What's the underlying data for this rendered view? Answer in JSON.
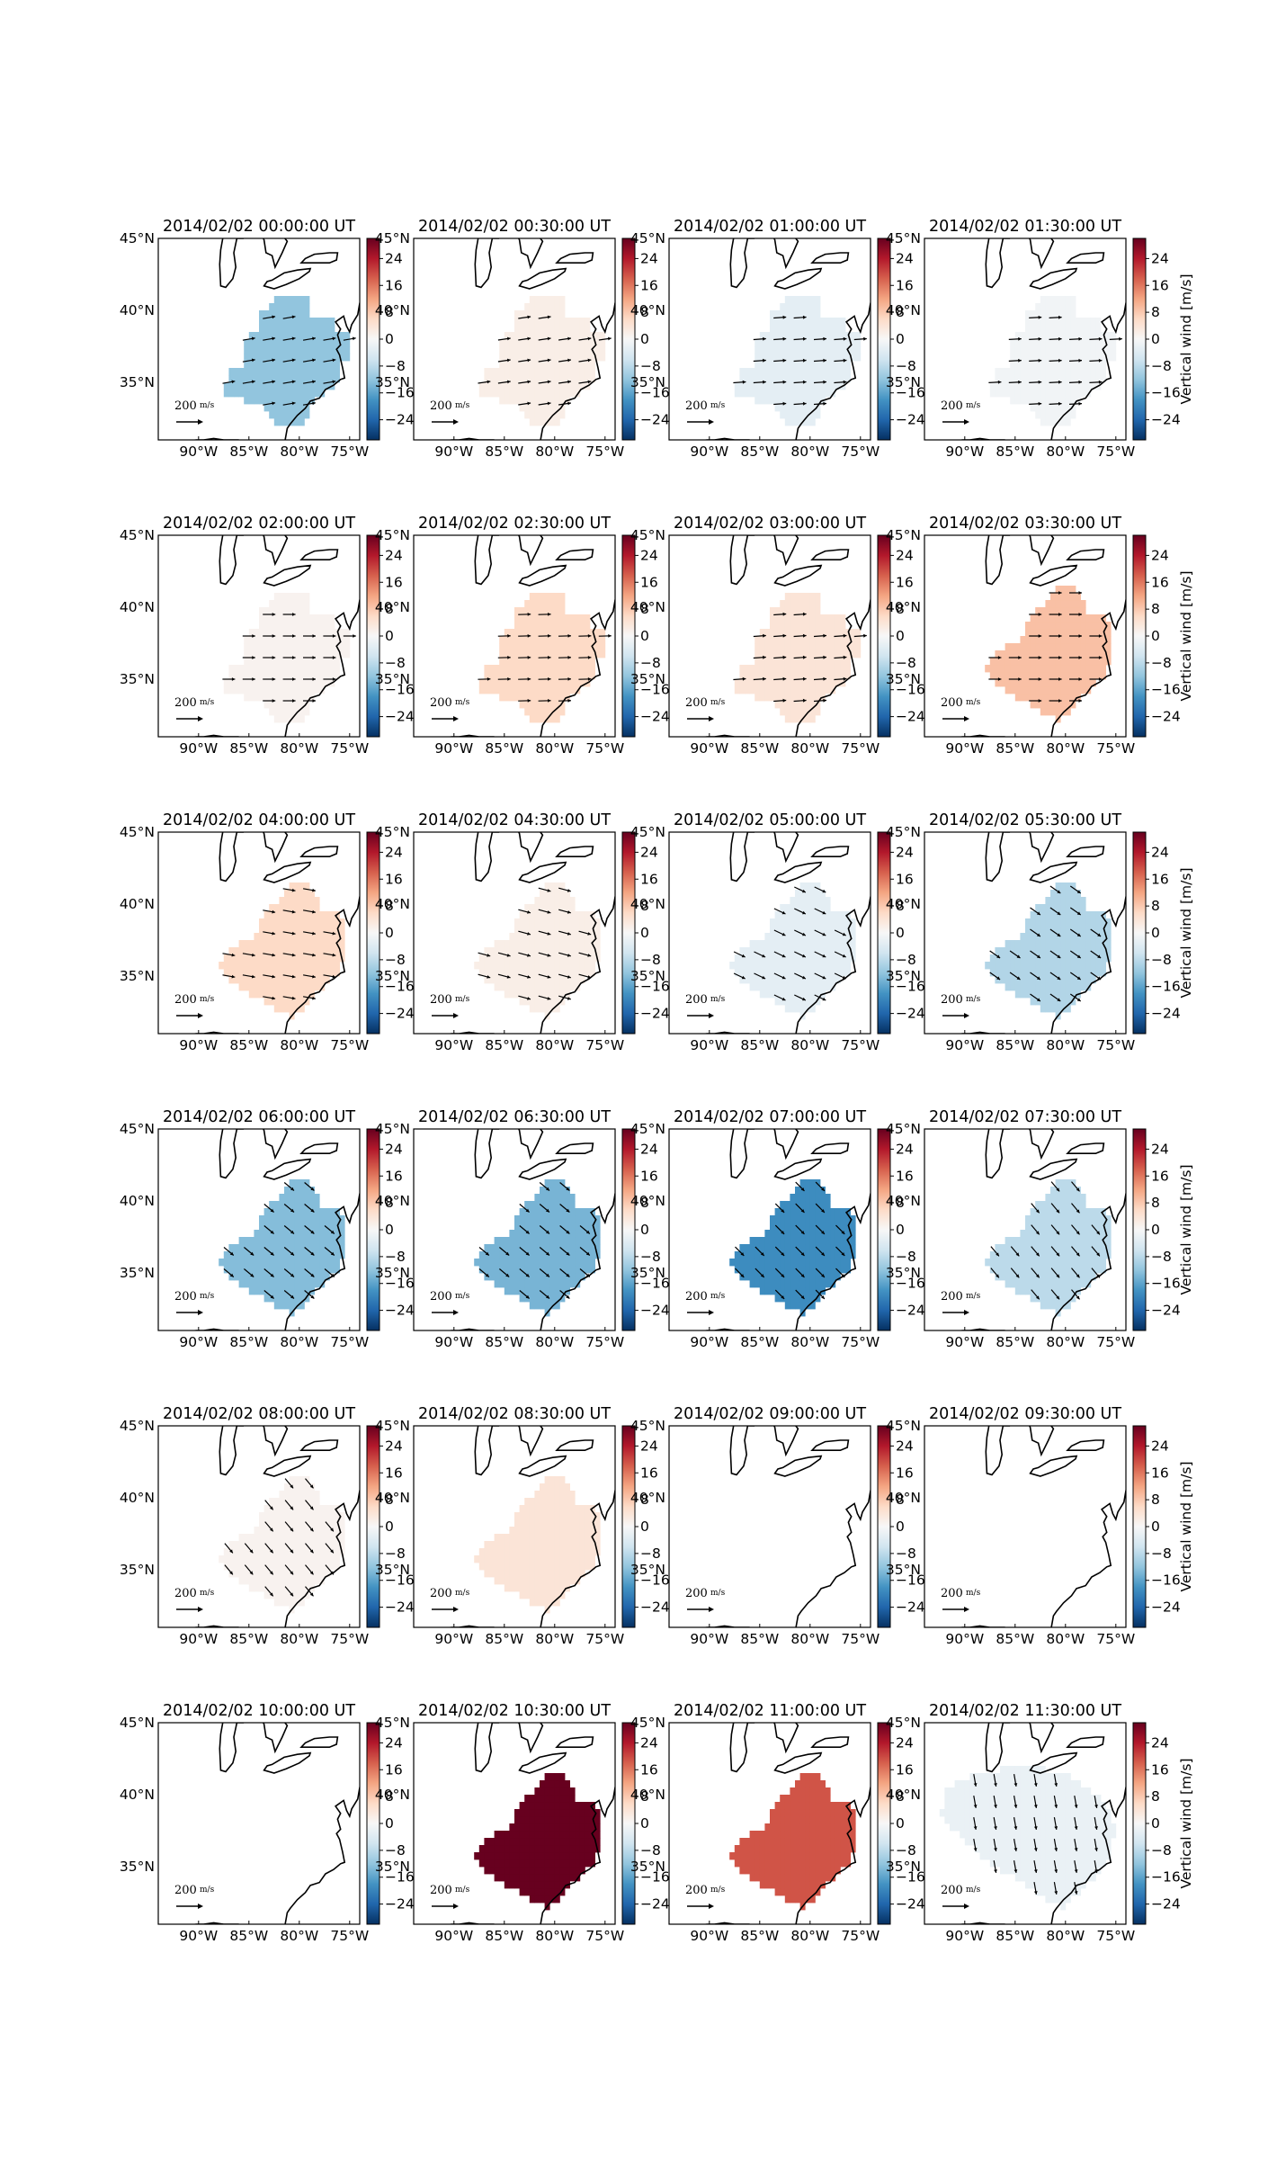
{
  "figure": {
    "colorbar_label": "Vertical wind [m/s]",
    "colorbar_ticks": [
      "24",
      "16",
      "8",
      "0",
      "−8",
      "−16",
      "−24"
    ],
    "lon_ticks": [
      "90°W",
      "85°W",
      "80°W",
      "75°W"
    ],
    "lat_ticks": [
      "45°N",
      "40°N",
      "35°N"
    ],
    "scale_arrow_label": "200",
    "scale_arrow_unit": "m/s"
  },
  "chart_data": {
    "type": "heatmap",
    "colormap": "RdBu_r",
    "vmin": -30,
    "vmax": 30,
    "lon_range": [
      -94,
      -74
    ],
    "lat_range": [
      31,
      45
    ],
    "panels": [
      {
        "title": "2014/02/02 00:00:00 UT",
        "value": -12,
        "wind_dir": 10,
        "shape": "a"
      },
      {
        "title": "2014/02/02 00:30:00 UT",
        "value": 2,
        "wind_dir": 8,
        "shape": "a"
      },
      {
        "title": "2014/02/02 01:00:00 UT",
        "value": -3,
        "wind_dir": 4,
        "shape": "a"
      },
      {
        "title": "2014/02/02 01:30:00 UT",
        "value": -1,
        "wind_dir": 3,
        "shape": "a"
      },
      {
        "title": "2014/02/02 02:00:00 UT",
        "value": 1,
        "wind_dir": 0,
        "shape": "a"
      },
      {
        "title": "2014/02/02 02:30:00 UT",
        "value": 6,
        "wind_dir": 2,
        "shape": "a"
      },
      {
        "title": "2014/02/02 03:00:00 UT",
        "value": 4,
        "wind_dir": 4,
        "shape": "a"
      },
      {
        "title": "2014/02/02 03:30:00 UT",
        "value": 9,
        "wind_dir": 0,
        "shape": "b"
      },
      {
        "title": "2014/02/02 04:00:00 UT",
        "value": 6,
        "wind_dir": -10,
        "shape": "b"
      },
      {
        "title": "2014/02/02 04:30:00 UT",
        "value": 2,
        "wind_dir": -15,
        "shape": "b"
      },
      {
        "title": "2014/02/02 05:00:00 UT",
        "value": -3,
        "wind_dir": -25,
        "shape": "b"
      },
      {
        "title": "2014/02/02 05:30:00 UT",
        "value": -9,
        "wind_dir": -35,
        "shape": "b"
      },
      {
        "title": "2014/02/02 06:00:00 UT",
        "value": -13,
        "wind_dir": -40,
        "shape": "b"
      },
      {
        "title": "2014/02/02 06:30:00 UT",
        "value": -14,
        "wind_dir": -40,
        "shape": "b"
      },
      {
        "title": "2014/02/02 07:00:00 UT",
        "value": -19,
        "wind_dir": -45,
        "shape": "b"
      },
      {
        "title": "2014/02/02 07:30:00 UT",
        "value": -8,
        "wind_dir": -50,
        "shape": "b"
      },
      {
        "title": "2014/02/02 08:00:00 UT",
        "value": 1,
        "wind_dir": -50,
        "shape": "b"
      },
      {
        "title": "2014/02/02 08:30:00 UT",
        "value": 4,
        "wind_dir": null,
        "shape": "b"
      },
      {
        "title": "2014/02/02 09:00:00 UT",
        "value": null,
        "wind_dir": null,
        "shape": "none"
      },
      {
        "title": "2014/02/02 09:30:00 UT",
        "value": null,
        "wind_dir": null,
        "shape": "none"
      },
      {
        "title": "2014/02/02 10:00:00 UT",
        "value": null,
        "wind_dir": null,
        "shape": "none"
      },
      {
        "title": "2014/02/02 10:30:00 UT",
        "value": 30,
        "wind_dir": null,
        "shape": "b"
      },
      {
        "title": "2014/02/02 11:00:00 UT",
        "value": 19,
        "wind_dir": null,
        "shape": "b"
      },
      {
        "title": "2014/02/02 11:30:00 UT",
        "value": -2,
        "wind_dir": -80,
        "shape": "c"
      }
    ],
    "colorbar_on_panels": "all except those in column 4 show a colorbar overlapped by the next panel's latitude labels",
    "grid": false,
    "legend": "none"
  }
}
